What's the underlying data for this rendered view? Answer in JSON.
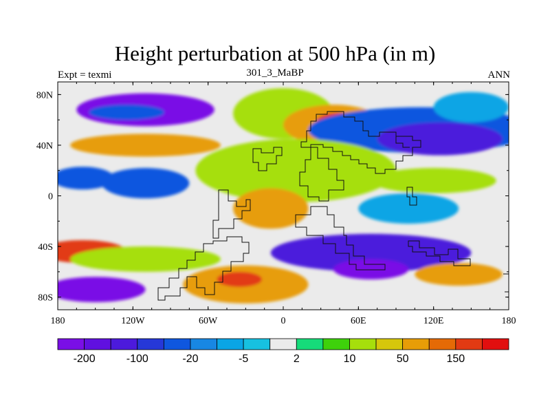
{
  "title": "Height perturbation at 500 hPa (in m)",
  "left_label": "Expt = texmi",
  "center_label": "301_3_MaBP",
  "right_label": "ANN",
  "map": {
    "projection": "cylindrical-equidistant",
    "lon_range": [
      -180,
      180
    ],
    "lat_range": [
      -90,
      90
    ],
    "x_ticks": [
      {
        "value": -180,
        "label": "180"
      },
      {
        "value": -120,
        "label": "120W"
      },
      {
        "value": -60,
        "label": "60W"
      },
      {
        "value": 0,
        "label": "0"
      },
      {
        "value": 60,
        "label": "60E"
      },
      {
        "value": 120,
        "label": "120E"
      },
      {
        "value": 180,
        "label": "180"
      }
    ],
    "y_ticks": [
      {
        "value": 80,
        "label": "80N"
      },
      {
        "value": 40,
        "label": "40N"
      },
      {
        "value": 0,
        "label": "0"
      },
      {
        "value": -40,
        "label": "40S"
      },
      {
        "value": -80,
        "label": "80S"
      }
    ],
    "field_blobs": [
      {
        "lon": -110,
        "lat": 68,
        "rlon": 55,
        "rlat": 13,
        "level": -200
      },
      {
        "lon": -125,
        "lat": 66,
        "rlon": 30,
        "rlat": 6,
        "level": -20
      },
      {
        "lon": -110,
        "lat": 40,
        "rlon": 60,
        "rlat": 9,
        "level": 50
      },
      {
        "lon": -160,
        "lat": 14,
        "rlon": 25,
        "rlat": 9,
        "level": -20
      },
      {
        "lon": -110,
        "lat": 10,
        "rlon": 35,
        "rlat": 12,
        "level": -20
      },
      {
        "lon": 0,
        "lat": 65,
        "rlon": 40,
        "rlat": 20,
        "level": 10
      },
      {
        "lon": 40,
        "lat": 56,
        "rlon": 40,
        "rlat": 16,
        "level": 50
      },
      {
        "lon": 44,
        "lat": 58,
        "rlon": 18,
        "rlat": 8,
        "level": 150
      },
      {
        "lon": 110,
        "lat": 52,
        "rlon": 90,
        "rlat": 18,
        "level": -20
      },
      {
        "lon": 125,
        "lat": 45,
        "rlon": 50,
        "rlat": 13,
        "level": -100
      },
      {
        "lon": 150,
        "lat": 70,
        "rlon": 30,
        "rlat": 12,
        "level": -5
      },
      {
        "lon": 10,
        "lat": 20,
        "rlon": 80,
        "rlat": 25,
        "level": 10
      },
      {
        "lon": -10,
        "lat": -10,
        "rlon": 30,
        "rlat": 16,
        "level": 50
      },
      {
        "lon": 120,
        "lat": 12,
        "rlon": 50,
        "rlat": 10,
        "level": 10
      },
      {
        "lon": 100,
        "lat": -10,
        "rlon": 40,
        "rlat": 12,
        "level": -5
      },
      {
        "lon": -160,
        "lat": -44,
        "rlon": 35,
        "rlat": 9,
        "level": 150
      },
      {
        "lon": -110,
        "lat": -50,
        "rlon": 60,
        "rlat": 10,
        "level": 10
      },
      {
        "lon": 70,
        "lat": -45,
        "rlon": 80,
        "rlat": 15,
        "level": -100
      },
      {
        "lon": 70,
        "lat": -58,
        "rlon": 30,
        "rlat": 8,
        "level": -200
      },
      {
        "lon": 140,
        "lat": -62,
        "rlon": 35,
        "rlat": 9,
        "level": 50
      },
      {
        "lon": -150,
        "lat": -74,
        "rlon": 40,
        "rlat": 10,
        "level": -200
      },
      {
        "lon": -30,
        "lat": -70,
        "rlon": 50,
        "rlat": 15,
        "level": 50
      },
      {
        "lon": -35,
        "lat": -66,
        "rlon": 18,
        "rlat": 6,
        "level": 150
      }
    ]
  },
  "colorbar": {
    "colors": [
      "#7a0fe6",
      "#6010e0",
      "#4c1adc",
      "#2638d8",
      "#0f57df",
      "#1887e3",
      "#0aa5e5",
      "#17c1e0",
      "#ebebeb",
      "#16db7a",
      "#3ed10b",
      "#a6df0c",
      "#d6c70b",
      "#e79d07",
      "#e56a06",
      "#e23a13",
      "#e20f0f"
    ],
    "labels": [
      {
        "text": "-200",
        "boundary": 1
      },
      {
        "text": "-100",
        "boundary": 3
      },
      {
        "text": "-20",
        "boundary": 5
      },
      {
        "text": "-5",
        "boundary": 7
      },
      {
        "text": "2",
        "boundary": 9
      },
      {
        "text": "10",
        "boundary": 11
      },
      {
        "text": "50",
        "boundary": 13
      },
      {
        "text": "150",
        "boundary": 15
      }
    ]
  }
}
